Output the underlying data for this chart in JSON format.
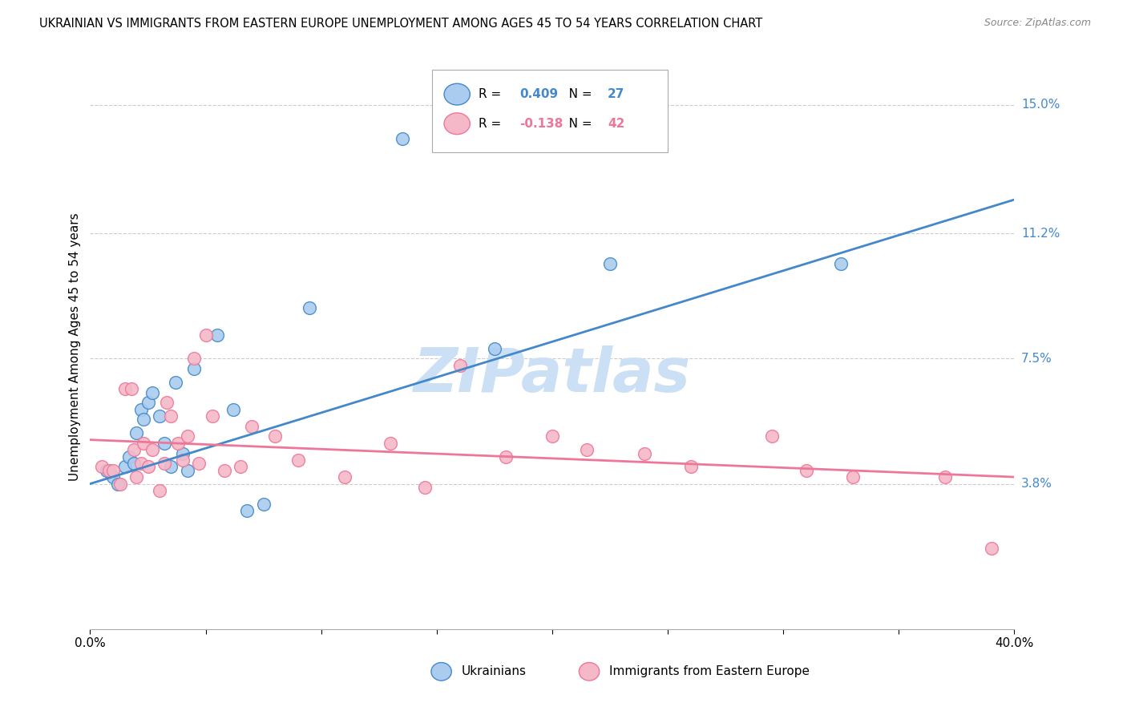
{
  "title": "UKRAINIAN VS IMMIGRANTS FROM EASTERN EUROPE UNEMPLOYMENT AMONG AGES 45 TO 54 YEARS CORRELATION CHART",
  "source": "Source: ZipAtlas.com",
  "ylabel": "Unemployment Among Ages 45 to 54 years",
  "xlim": [
    0.0,
    0.4
  ],
  "ylim": [
    -0.005,
    0.162
  ],
  "xticks": [
    0.0,
    0.05,
    0.1,
    0.15,
    0.2,
    0.25,
    0.3,
    0.35,
    0.4
  ],
  "xticklabels": [
    "0.0%",
    "",
    "",
    "",
    "",
    "",
    "",
    "",
    "40.0%"
  ],
  "ytick_positions": [
    0.038,
    0.075,
    0.112,
    0.15
  ],
  "ytick_labels": [
    "3.8%",
    "7.5%",
    "11.2%",
    "15.0%"
  ],
  "blue_scatter_x": [
    0.007,
    0.01,
    0.012,
    0.015,
    0.017,
    0.019,
    0.02,
    0.022,
    0.023,
    0.025,
    0.027,
    0.03,
    0.032,
    0.035,
    0.037,
    0.04,
    0.042,
    0.045,
    0.055,
    0.062,
    0.068,
    0.075,
    0.095,
    0.135,
    0.175,
    0.225,
    0.325
  ],
  "blue_scatter_y": [
    0.042,
    0.04,
    0.038,
    0.043,
    0.046,
    0.044,
    0.053,
    0.06,
    0.057,
    0.062,
    0.065,
    0.058,
    0.05,
    0.043,
    0.068,
    0.047,
    0.042,
    0.072,
    0.082,
    0.06,
    0.03,
    0.032,
    0.09,
    0.14,
    0.078,
    0.103,
    0.103
  ],
  "pink_scatter_x": [
    0.005,
    0.008,
    0.01,
    0.013,
    0.015,
    0.018,
    0.019,
    0.02,
    0.022,
    0.023,
    0.025,
    0.027,
    0.03,
    0.032,
    0.033,
    0.035,
    0.038,
    0.04,
    0.042,
    0.045,
    0.047,
    0.05,
    0.053,
    0.058,
    0.065,
    0.07,
    0.08,
    0.09,
    0.11,
    0.13,
    0.145,
    0.16,
    0.18,
    0.2,
    0.215,
    0.24,
    0.26,
    0.295,
    0.31,
    0.33,
    0.37,
    0.39
  ],
  "pink_scatter_y": [
    0.043,
    0.042,
    0.042,
    0.038,
    0.066,
    0.066,
    0.048,
    0.04,
    0.044,
    0.05,
    0.043,
    0.048,
    0.036,
    0.044,
    0.062,
    0.058,
    0.05,
    0.045,
    0.052,
    0.075,
    0.044,
    0.082,
    0.058,
    0.042,
    0.043,
    0.055,
    0.052,
    0.045,
    0.04,
    0.05,
    0.037,
    0.073,
    0.046,
    0.052,
    0.048,
    0.047,
    0.043,
    0.052,
    0.042,
    0.04,
    0.04,
    0.019
  ],
  "blue_line_color": "#4488cc",
  "pink_line_color": "#ee7799",
  "blue_scatter_color": "#aaccee",
  "pink_scatter_color": "#f5b8c8",
  "watermark": "ZIPatlas",
  "watermark_color": "#cce0f5",
  "background_color": "#ffffff",
  "grid_color": "#cccccc",
  "legend_entries": [
    {
      "label": "Ukrainians",
      "R": "0.409",
      "N": "27"
    },
    {
      "label": "Immigrants from Eastern Europe",
      "R": "-0.138",
      "N": "42"
    }
  ]
}
